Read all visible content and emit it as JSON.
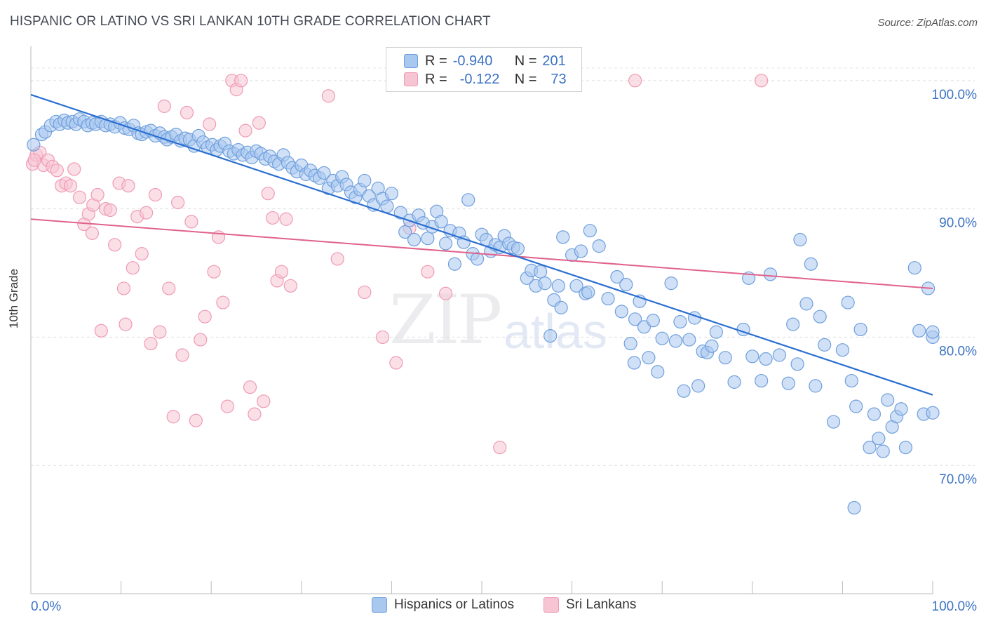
{
  "title": "HISPANIC OR LATINO VS SRI LANKAN 10TH GRADE CORRELATION CHART",
  "source": "Source: ZipAtlas.com",
  "watermark": {
    "part1": "ZIP",
    "part2": "atlas"
  },
  "legend": {
    "rows": [
      {
        "r_label": "R =",
        "r_value": "-0.940",
        "n_label": "N =",
        "n_value": "201",
        "color": "#8ab4e8"
      },
      {
        "r_label": "R =",
        "r_value": "-0.122",
        "n_label": "N =",
        "n_value": "73",
        "color": "#f4a7c0"
      }
    ]
  },
  "bottom_legend": {
    "series1": "Hispanics or Latinos",
    "series2": "Sri Lankans"
  },
  "colors": {
    "blue_fill": "#a9c8f0",
    "blue_stroke": "#6f9fdc",
    "blue_line": "#2a6fd0",
    "pink_fill": "#f7c4d4",
    "pink_stroke": "#ef9ab5",
    "pink_line": "#e0628c",
    "tick_text": "#3b72c4"
  },
  "chart_data": {
    "type": "scatter",
    "title": "HISPANIC OR LATINO VS SRI LANKAN 10TH GRADE CORRELATION CHART",
    "xlabel": "",
    "ylabel": "10th Grade",
    "xlim": [
      0,
      100
    ],
    "ylim": [
      60,
      103
    ],
    "x_tick_labels": [
      "0.0%",
      "100.0%"
    ],
    "y_ticks": [
      70,
      80,
      90,
      100
    ],
    "y_tick_labels": [
      "70.0%",
      "80.0%",
      "90.0%",
      "100.0%"
    ],
    "series": [
      {
        "name": "Hispanics or Latinos",
        "R": -0.94,
        "N": 201,
        "trend": {
          "x0": 0,
          "y0": 98.9,
          "x1": 100,
          "y1": 75.5
        },
        "points": [
          [
            0.3,
            95
          ],
          [
            1.2,
            95.8
          ],
          [
            1.6,
            96
          ],
          [
            2.2,
            96.5
          ],
          [
            2.8,
            96.8
          ],
          [
            3.2,
            96.6
          ],
          [
            3.7,
            96.9
          ],
          [
            4.1,
            96.7
          ],
          [
            4.6,
            96.8
          ],
          [
            5.0,
            96.6
          ],
          [
            5.4,
            97
          ],
          [
            5.9,
            96.8
          ],
          [
            6.3,
            96.5
          ],
          [
            6.8,
            96.7
          ],
          [
            7.2,
            96.6
          ],
          [
            7.8,
            96.8
          ],
          [
            8.3,
            96.5
          ],
          [
            8.8,
            96.6
          ],
          [
            9.3,
            96.4
          ],
          [
            9.9,
            96.7
          ],
          [
            10.4,
            96.3
          ],
          [
            10.9,
            96.2
          ],
          [
            11.4,
            96.5
          ],
          [
            11.9,
            95.9
          ],
          [
            12.3,
            95.8
          ],
          [
            12.8,
            96
          ],
          [
            13.3,
            96.1
          ],
          [
            13.8,
            95.7
          ],
          [
            14.3,
            95.9
          ],
          [
            14.8,
            95.6
          ],
          [
            15.1,
            95.4
          ],
          [
            15.6,
            95.6
          ],
          [
            16.1,
            95.8
          ],
          [
            16.6,
            95.3
          ],
          [
            17.1,
            95.5
          ],
          [
            17.6,
            95.4
          ],
          [
            18.1,
            94.9
          ],
          [
            18.6,
            95.7
          ],
          [
            19.1,
            95.2
          ],
          [
            19.6,
            94.8
          ],
          [
            20.1,
            95
          ],
          [
            20.6,
            94.6
          ],
          [
            21.0,
            94.9
          ],
          [
            21.5,
            95.1
          ],
          [
            22.0,
            94.5
          ],
          [
            22.5,
            94.3
          ],
          [
            23.0,
            94.6
          ],
          [
            23.5,
            94.2
          ],
          [
            24.0,
            94.4
          ],
          [
            24.5,
            94.0
          ],
          [
            25.0,
            94.5
          ],
          [
            25.5,
            94.3
          ],
          [
            26.0,
            93.9
          ],
          [
            26.5,
            94.1
          ],
          [
            27.0,
            93.7
          ],
          [
            27.5,
            93.5
          ],
          [
            28.0,
            94.2
          ],
          [
            28.5,
            93.6
          ],
          [
            29.0,
            93.2
          ],
          [
            29.5,
            92.9
          ],
          [
            30.0,
            93.4
          ],
          [
            30.5,
            92.7
          ],
          [
            31.0,
            93.0
          ],
          [
            31.5,
            92.6
          ],
          [
            32.0,
            92.4
          ],
          [
            32.5,
            92.8
          ],
          [
            33.0,
            91.6
          ],
          [
            33.5,
            92.2
          ],
          [
            34.0,
            91.8
          ],
          [
            34.5,
            92.5
          ],
          [
            35.0,
            91.9
          ],
          [
            35.5,
            91.3
          ],
          [
            36.0,
            90.9
          ],
          [
            36.5,
            91.5
          ],
          [
            37.0,
            92.2
          ],
          [
            37.5,
            91.0
          ],
          [
            38.0,
            90.3
          ],
          [
            38.5,
            91.6
          ],
          [
            39.0,
            90.8
          ],
          [
            39.5,
            90.2
          ],
          [
            40.0,
            91.2
          ],
          [
            41.0,
            89.7
          ],
          [
            41.5,
            88.2
          ],
          [
            42.0,
            89.1
          ],
          [
            42.5,
            87.6
          ],
          [
            43.0,
            89.5
          ],
          [
            43.5,
            88.9
          ],
          [
            44.0,
            87.7
          ],
          [
            44.5,
            88.6
          ],
          [
            45.0,
            89.8
          ],
          [
            45.5,
            89.0
          ],
          [
            46.0,
            87.3
          ],
          [
            46.5,
            88.3
          ],
          [
            47.0,
            85.7
          ],
          [
            47.5,
            88.1
          ],
          [
            48.0,
            87.4
          ],
          [
            48.5,
            90.7
          ],
          [
            49.0,
            86.5
          ],
          [
            49.5,
            86.1
          ],
          [
            50.0,
            88.0
          ],
          [
            50.5,
            87.6
          ],
          [
            51.0,
            86.7
          ],
          [
            51.5,
            87.2
          ],
          [
            52.0,
            87.0
          ],
          [
            52.5,
            87.9
          ],
          [
            53.0,
            87.3
          ],
          [
            53.5,
            87.0
          ],
          [
            54.0,
            86.9
          ],
          [
            55.0,
            84.6
          ],
          [
            55.5,
            85.2
          ],
          [
            56.0,
            84.0
          ],
          [
            56.5,
            85.1
          ],
          [
            57.0,
            84.2
          ],
          [
            58.0,
            82.9
          ],
          [
            58.5,
            84.0
          ],
          [
            59.0,
            87.8
          ],
          [
            60.0,
            86.4
          ],
          [
            60.5,
            84.0
          ],
          [
            61.0,
            86.7
          ],
          [
            61.5,
            83.4
          ],
          [
            62.0,
            88.3
          ],
          [
            63.0,
            87.1
          ],
          [
            64.0,
            83.0
          ],
          [
            65.0,
            84.7
          ],
          [
            65.5,
            82.0
          ],
          [
            66.0,
            84.1
          ],
          [
            66.5,
            79.5
          ],
          [
            67.0,
            81.4
          ],
          [
            67.5,
            82.8
          ],
          [
            68.0,
            80.8
          ],
          [
            68.5,
            78.4
          ],
          [
            69.0,
            81.3
          ],
          [
            70.0,
            79.9
          ],
          [
            71.0,
            84.2
          ],
          [
            71.5,
            79.7
          ],
          [
            72.0,
            81.2
          ],
          [
            73.0,
            79.8
          ],
          [
            74.0,
            76.2
          ],
          [
            74.5,
            78.9
          ],
          [
            75.0,
            78.8
          ],
          [
            75.5,
            79.3
          ],
          [
            76.0,
            80.4
          ],
          [
            77.0,
            78.4
          ],
          [
            78.0,
            76.5
          ],
          [
            79.0,
            80.6
          ],
          [
            80.0,
            78.5
          ],
          [
            81.0,
            76.6
          ],
          [
            81.5,
            78.3
          ],
          [
            82.0,
            84.9
          ],
          [
            83.0,
            78.6
          ],
          [
            84.0,
            76.4
          ],
          [
            84.5,
            81.0
          ],
          [
            85.0,
            77.9
          ],
          [
            86.0,
            82.6
          ],
          [
            87.0,
            76.2
          ],
          [
            87.5,
            81.6
          ],
          [
            88.0,
            79.4
          ],
          [
            89.0,
            73.4
          ],
          [
            90.0,
            79.0
          ],
          [
            91.0,
            76.6
          ],
          [
            91.5,
            74.6
          ],
          [
            92.0,
            80.6
          ],
          [
            93.0,
            71.4
          ],
          [
            93.5,
            74.0
          ],
          [
            94.0,
            72.1
          ],
          [
            94.5,
            71.1
          ],
          [
            95.0,
            75.1
          ],
          [
            95.5,
            73.0
          ],
          [
            96.0,
            73.8
          ],
          [
            96.5,
            74.4
          ],
          [
            97.0,
            71.4
          ],
          [
            98.0,
            85.4
          ],
          [
            98.5,
            80.5
          ],
          [
            99.0,
            74.0
          ],
          [
            99.5,
            83.8
          ],
          [
            100.0,
            80.0
          ],
          [
            100.0,
            74.1
          ],
          [
            100.0,
            80.4
          ],
          [
            86.5,
            85.7
          ],
          [
            91.3,
            66.7
          ],
          [
            79.6,
            84.6
          ],
          [
            85.3,
            87.6
          ],
          [
            90.6,
            82.7
          ],
          [
            73.6,
            81.5
          ],
          [
            69.5,
            77.3
          ],
          [
            61.8,
            83.5
          ],
          [
            58.8,
            82.3
          ],
          [
            57.6,
            80.1
          ],
          [
            72.4,
            75.8
          ],
          [
            66.9,
            78.0
          ]
        ]
      },
      {
        "name": "Sri Lankans",
        "R": -0.122,
        "N": 73,
        "trend": {
          "x0": 0,
          "y0": 89.2,
          "x1": 100,
          "y1": 83.8
        },
        "points": [
          [
            0.2,
            93.5
          ],
          [
            0.6,
            94.2
          ],
          [
            1.0,
            94.4
          ],
          [
            1.4,
            93.4
          ],
          [
            1.9,
            93.8
          ],
          [
            2.4,
            93.3
          ],
          [
            2.9,
            93.0
          ],
          [
            3.4,
            91.8
          ],
          [
            3.9,
            92.0
          ],
          [
            4.4,
            91.8
          ],
          [
            4.8,
            93.1
          ],
          [
            5.4,
            90.9
          ],
          [
            5.9,
            88.8
          ],
          [
            6.4,
            89.6
          ],
          [
            6.9,
            90.3
          ],
          [
            7.4,
            91.1
          ],
          [
            7.8,
            80.5
          ],
          [
            8.3,
            90.0
          ],
          [
            8.8,
            89.9
          ],
          [
            9.3,
            87.2
          ],
          [
            9.8,
            92.0
          ],
          [
            10.3,
            83.8
          ],
          [
            10.5,
            81.0
          ],
          [
            10.8,
            91.8
          ],
          [
            11.3,
            85.4
          ],
          [
            11.8,
            89.4
          ],
          [
            12.3,
            86.5
          ],
          [
            12.8,
            89.7
          ],
          [
            13.3,
            79.5
          ],
          [
            13.8,
            91.1
          ],
          [
            14.3,
            80.4
          ],
          [
            14.8,
            98.0
          ],
          [
            15.3,
            83.8
          ],
          [
            15.8,
            73.8
          ],
          [
            16.3,
            90.5
          ],
          [
            16.8,
            78.6
          ],
          [
            17.3,
            97.5
          ],
          [
            17.8,
            89.0
          ],
          [
            18.3,
            73.5
          ],
          [
            18.8,
            79.8
          ],
          [
            19.3,
            81.6
          ],
          [
            19.8,
            96.6
          ],
          [
            20.3,
            85.1
          ],
          [
            20.8,
            87.8
          ],
          [
            21.3,
            82.7
          ],
          [
            21.8,
            74.6
          ],
          [
            22.3,
            100.0
          ],
          [
            22.8,
            99.3
          ],
          [
            23.3,
            100.0
          ],
          [
            23.8,
            96.1
          ],
          [
            24.3,
            76.1
          ],
          [
            24.8,
            74.0
          ],
          [
            25.3,
            96.7
          ],
          [
            25.8,
            75.0
          ],
          [
            26.3,
            91.2
          ],
          [
            26.8,
            89.3
          ],
          [
            27.3,
            84.4
          ],
          [
            27.8,
            85.1
          ],
          [
            28.3,
            89.2
          ],
          [
            28.8,
            84.0
          ],
          [
            33.0,
            98.8
          ],
          [
            34.0,
            86.1
          ],
          [
            37.0,
            83.5
          ],
          [
            39.0,
            80.0
          ],
          [
            40.5,
            78.0
          ],
          [
            42.0,
            88.5
          ],
          [
            44.0,
            85.1
          ],
          [
            46.0,
            83.4
          ],
          [
            52.0,
            71.4
          ],
          [
            67.0,
            100.0
          ],
          [
            81.0,
            100.0
          ],
          [
            0.4,
            93.8
          ],
          [
            6.8,
            88.1
          ]
        ]
      }
    ]
  }
}
